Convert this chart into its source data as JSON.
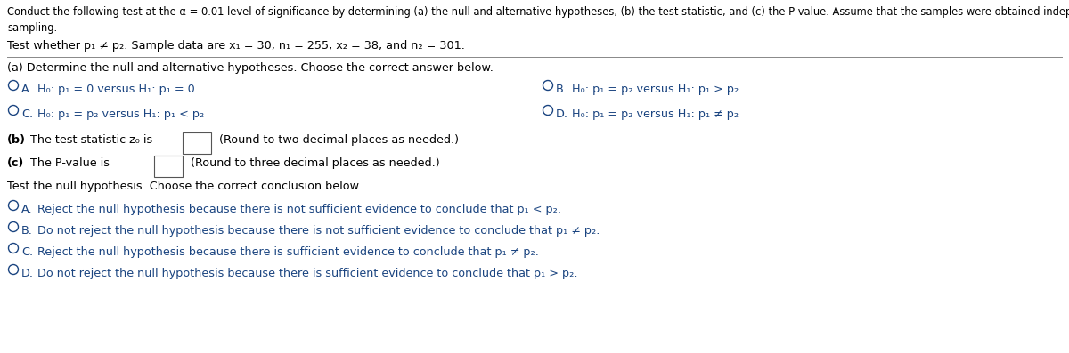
{
  "bg_color": "#ffffff",
  "text_color": "#000000",
  "blue_color": "#1a4480",
  "intro_line1": "Conduct the following test at the α = 0.01 level of significance by determining (a) the null and alternative hypotheses, (b) the test statistic, and (c) the P-value. Assume that the samples were obtained independently using simple random",
  "intro_line2": "sampling.",
  "test_line": "Test whether p₁ ≠ p₂. Sample data are x₁ = 30, n₁ = 255, x₂ = 38, and n₂ = 301.",
  "part_a_label": "(a) Determine the null and alternative hypotheses. Choose the correct answer below.",
  "optA_prefix": "A.",
  "optA_text": "  H₀: p₁ = 0 versus H₁: p₁ = 0",
  "optB_prefix": "B.",
  "optB_text": "  H₀: p₁ = p₂ versus H₁: p₁ > p₂",
  "optC_prefix": "C.",
  "optC_text": "  H₀: p₁ = p₂ versus H₁: p₁ < p₂",
  "optD_prefix": "D.",
  "optD_text": "  H₀: p₁ = p₂ versus H₁: p₁ ≠ p₂",
  "part_b_bold": "(b)",
  "part_b_text": " The test statistic z₀ is",
  "part_b_suffix": " (Round to two decimal places as needed.)",
  "part_c_bold": "(c)",
  "part_c_text": " The P-value is",
  "part_c_suffix": " (Round to three decimal places as needed.)",
  "conclude_label": "Test the null hypothesis. Choose the correct conclusion below.",
  "concA_prefix": "A.",
  "concA_text": "  Reject the null hypothesis because there is not sufficient evidence to conclude that p₁ < p₂.",
  "concB_prefix": "B.",
  "concB_text": "  Do not reject the null hypothesis because there is not sufficient evidence to conclude that p₁ ≠ p₂.",
  "concC_prefix": "C.",
  "concC_text": "  Reject the null hypothesis because there is sufficient evidence to conclude that p₁ ≠ p₂.",
  "concD_prefix": "D.",
  "concD_text": "  Do not reject the null hypothesis because there is sufficient evidence to conclude that p₁ > p₂."
}
